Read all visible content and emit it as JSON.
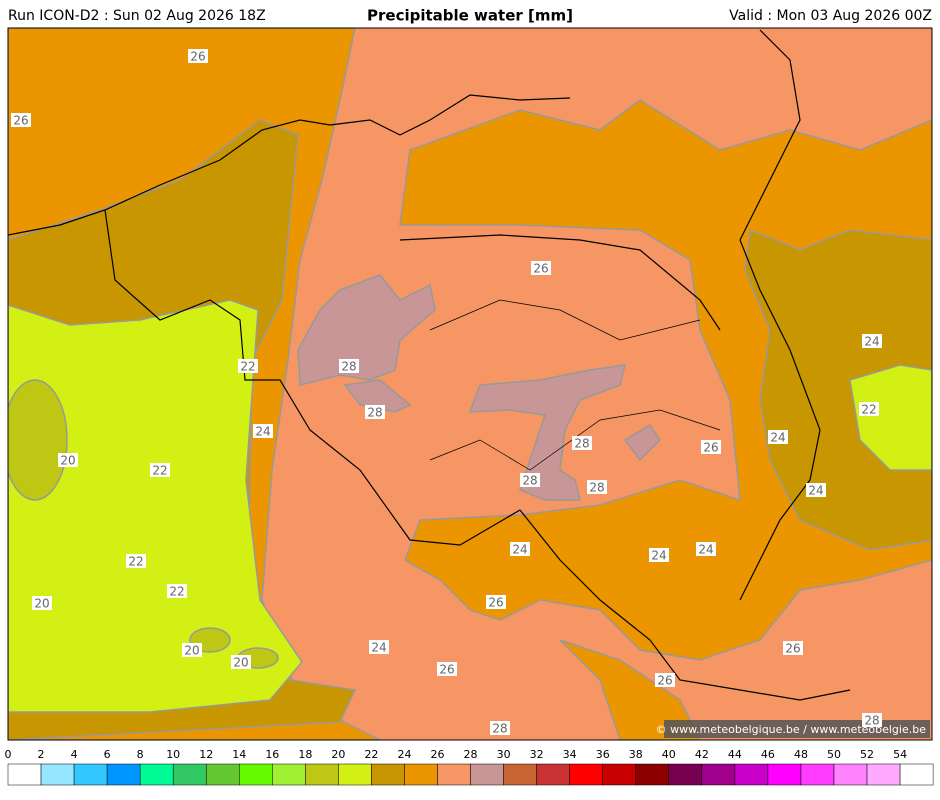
{
  "header": {
    "run": "Run ICON-D2 : Sun 02 Aug 2026 18Z",
    "title": "Precipitable water [mm]",
    "valid": "Valid : Mon 03 Aug 2026 00Z"
  },
  "contour_labels": [
    26,
    26,
    26,
    28,
    22,
    28,
    24,
    20,
    22,
    28,
    26,
    24,
    28,
    28,
    24,
    22,
    24,
    22,
    22,
    20,
    24,
    24,
    24,
    26,
    20,
    20,
    24,
    26,
    26,
    26,
    28,
    28
  ],
  "credit": "© www.meteobelgique.be / www.meteobelgie.be",
  "legend": {
    "ticks": [
      0,
      2,
      4,
      6,
      8,
      10,
      12,
      14,
      16,
      18,
      20,
      22,
      24,
      26,
      28,
      30,
      32,
      34,
      36,
      38,
      40,
      42,
      44,
      46,
      48,
      50,
      52,
      54
    ],
    "colors": [
      "#ffffff",
      "#96e6ff",
      "#32c8ff",
      "#0096ff",
      "#00fa96",
      "#32c864",
      "#64c832",
      "#64fa00",
      "#a0f032",
      "#bec814",
      "#d2f014",
      "#c89600",
      "#eb9600",
      "#f59664",
      "#c89696",
      "#c86432",
      "#c83232",
      "#ff0000",
      "#c80000",
      "#8c0000",
      "#780050",
      "#a0008c",
      "#c800c8",
      "#ff00ff",
      "#ff3cff",
      "#ff82ff",
      "#ffaaff",
      "#ffffff"
    ]
  }
}
